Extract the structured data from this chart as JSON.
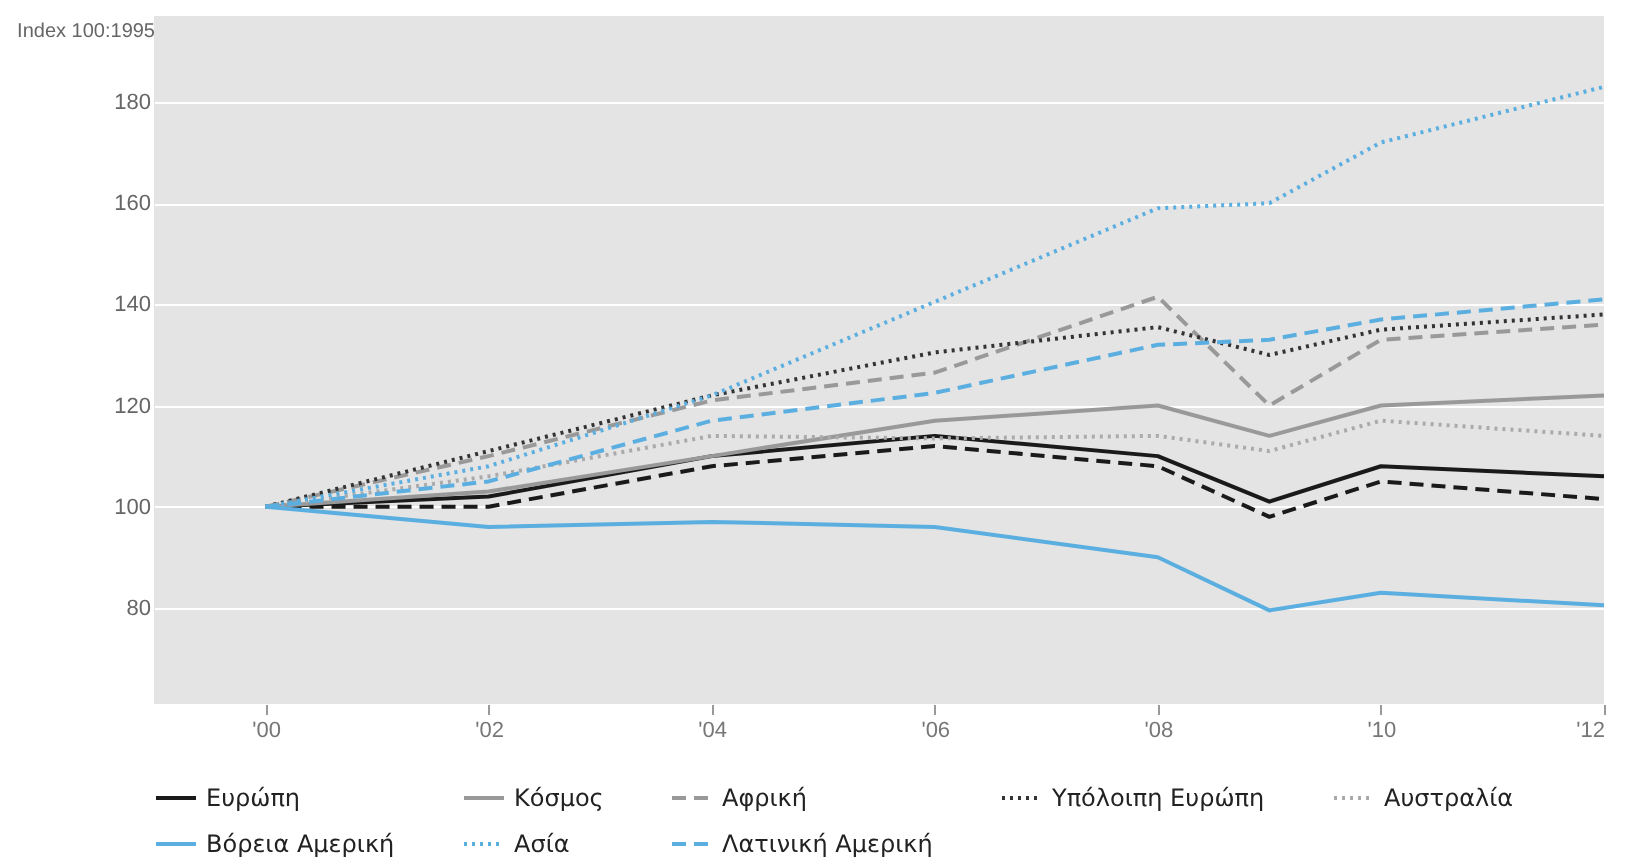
{
  "chart_data": {
    "type": "line",
    "ylabel": "Index 100:1995",
    "x": [
      2000,
      2002,
      2004,
      2006,
      2008,
      2009,
      2010,
      2012
    ],
    "xlim": [
      1999,
      2012
    ],
    "xticks": [
      {
        "value": 2000,
        "label": "'00"
      },
      {
        "value": 2002,
        "label": "'02"
      },
      {
        "value": 2004,
        "label": "'04"
      },
      {
        "value": 2006,
        "label": "'06"
      },
      {
        "value": 2008,
        "label": "'08"
      },
      {
        "value": 2010,
        "label": "'10"
      },
      {
        "value": 2012,
        "label": "'12"
      }
    ],
    "ylim": [
      61,
      197
    ],
    "yticks": [
      80,
      100,
      120,
      140,
      160,
      180
    ],
    "grid": "y",
    "legend": "bottom",
    "marker": "none",
    "series": [
      {
        "name": "Ευρώπη",
        "color": "#1a1a1a",
        "line_style": "solid",
        "values": [
          100,
          102,
          110,
          114,
          110,
          101,
          108,
          106
        ]
      },
      {
        "color": "#1a1a1a",
        "line_style": "dashed",
        "values": [
          100,
          100,
          108,
          112,
          108,
          98,
          105,
          101.5
        ]
      },
      {
        "name": "Κόσμος",
        "color": "#999999",
        "line_style": "solid",
        "values": [
          100,
          103,
          110,
          117,
          120,
          114,
          120,
          122
        ]
      },
      {
        "name": "Αφρική",
        "color": "#999999",
        "line_style": "dashed",
        "values": [
          100,
          110,
          121,
          126.5,
          141.5,
          120,
          133,
          136
        ]
      },
      {
        "name": "Υπόλοιπη Ευρώπη",
        "color": "#333333",
        "line_style": "dotted",
        "values": [
          100,
          111,
          122,
          130.5,
          135.5,
          130,
          135,
          138
        ]
      },
      {
        "name": "Αυστραλία",
        "color": "#aaaaaa",
        "line_style": "dotted",
        "values": [
          100,
          106,
          114,
          113.5,
          114,
          111,
          117,
          114
        ]
      },
      {
        "name": "Βόρεια Αμερική",
        "color": "#5aaee0",
        "line_style": "solid",
        "values": [
          100,
          96,
          97,
          96,
          90,
          79.5,
          83,
          80.5
        ]
      },
      {
        "name": "Ασία",
        "color": "#5aaee0",
        "line_style": "dotted",
        "values": [
          100,
          108,
          122,
          140.5,
          159,
          160,
          172,
          183
        ]
      },
      {
        "name": "Λατινική Αμερική",
        "color": "#5aaee0",
        "line_style": "dashed",
        "values": [
          100,
          105,
          117,
          122.5,
          132,
          133,
          137,
          141
        ]
      }
    ]
  }
}
